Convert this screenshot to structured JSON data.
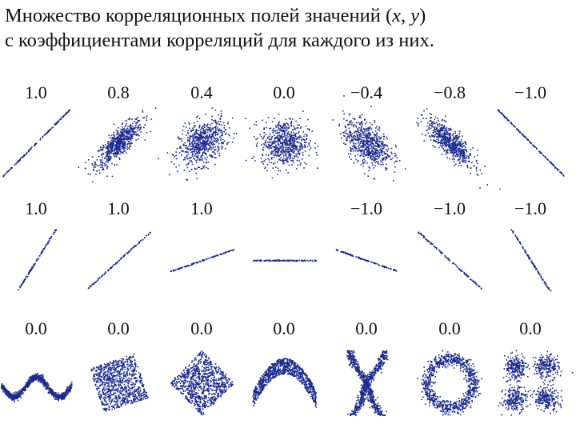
{
  "title": {
    "line1_pre": "Множество корреляционных полей значений (",
    "x": "x",
    "sep": ", ",
    "y": "y",
    "line1_post": ")",
    "line2": "с коэффициентами корреляций для каждого из них."
  },
  "colors": {
    "points": "#1a2a8c",
    "text": "#111111",
    "background": "#ffffff"
  },
  "chart_data": {
    "type": "scatter",
    "rows": [
      {
        "panels": [
          {
            "label": "1.0",
            "kind": "ellipse",
            "r": 1.0
          },
          {
            "label": "0.8",
            "kind": "ellipse",
            "r": 0.8
          },
          {
            "label": "0.4",
            "kind": "ellipse",
            "r": 0.4
          },
          {
            "label": "0.0",
            "kind": "ellipse",
            "r": 0.0
          },
          {
            "label": "−0.4",
            "kind": "ellipse",
            "r": -0.4
          },
          {
            "label": "−0.8",
            "kind": "ellipse",
            "r": -0.8
          },
          {
            "label": "−1.0",
            "kind": "ellipse",
            "r": -1.0
          }
        ]
      },
      {
        "panels": [
          {
            "label": "1.0",
            "kind": "line",
            "slope": 1.6
          },
          {
            "label": "1.0",
            "kind": "line",
            "slope": 0.9
          },
          {
            "label": "1.0",
            "kind": "line",
            "slope": 0.35
          },
          {
            "label": "",
            "kind": "line",
            "slope": 0.0
          },
          {
            "label": "−1.0",
            "kind": "line",
            "slope": -0.35
          },
          {
            "label": "−1.0",
            "kind": "line",
            "slope": -0.9
          },
          {
            "label": "−1.0",
            "kind": "line",
            "slope": -1.6
          }
        ]
      },
      {
        "panels": [
          {
            "label": "0.0",
            "kind": "wave"
          },
          {
            "label": "0.0",
            "kind": "rotated-square"
          },
          {
            "label": "0.0",
            "kind": "diamond"
          },
          {
            "label": "0.0",
            "kind": "parabola"
          },
          {
            "label": "0.0",
            "kind": "x-shape"
          },
          {
            "label": "0.0",
            "kind": "ring"
          },
          {
            "label": "0.0",
            "kind": "four-clusters"
          }
        ]
      }
    ]
  }
}
